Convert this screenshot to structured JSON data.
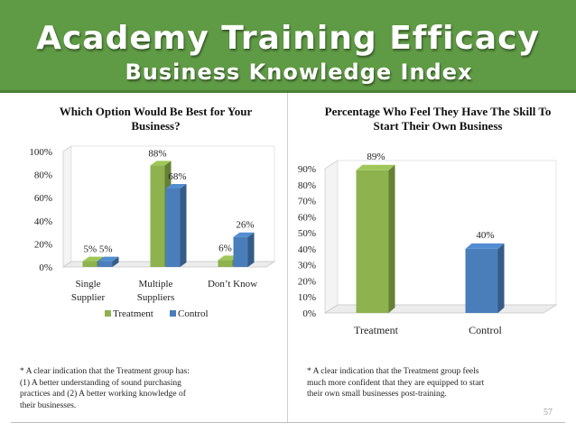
{
  "header": {
    "title": "Academy Training Efficacy",
    "subtitle": "Business Knowledge Index"
  },
  "colors": {
    "treatment": "#8db24e",
    "control": "#4a7ebb",
    "banner": "#5f9a45"
  },
  "chart_data": [
    {
      "type": "bar",
      "title": "Which Option Would Be Best for Your Business?",
      "categories": [
        "Single Supplier",
        "Multiple Suppliers",
        "Don't Know"
      ],
      "category_lines": [
        [
          "Single",
          "Supplier"
        ],
        [
          "Multiple",
          "Suppliers"
        ],
        [
          "Don’t Know"
        ]
      ],
      "series": [
        {
          "name": "Treatment",
          "values": [
            5,
            88,
            6
          ]
        },
        {
          "name": "Control",
          "values": [
            5,
            68,
            26
          ]
        }
      ],
      "data_labels": [
        [
          "5%",
          "88%",
          "6%"
        ],
        [
          "5%",
          "68%",
          "26%"
        ]
      ],
      "yticks": [
        "0%",
        "20%",
        "40%",
        "60%",
        "80%",
        "100%"
      ],
      "ylim": [
        0,
        100
      ],
      "legend": "bottom",
      "grid": false
    },
    {
      "type": "bar",
      "title": "Percentage Who Feel They Have The Skill To Start Their Own Business",
      "categories": [
        "Treatment",
        "Control"
      ],
      "values": [
        89,
        40
      ],
      "data_labels": [
        "89%",
        "40%"
      ],
      "yticks": [
        "0%",
        "10%",
        "20%",
        "30%",
        "40%",
        "50%",
        "60%",
        "70%",
        "80%",
        "90%"
      ],
      "ylim": [
        0,
        90
      ],
      "grid": false
    }
  ],
  "notes": {
    "left": [
      "* A clear indication that the Treatment group has:",
      "(1) A better understanding of sound purchasing",
      "practices and (2) A better working knowledge of",
      "their businesses."
    ],
    "right": [
      "* A clear indication that the Treatment group feels",
      "much more confident that they are equipped to start",
      "their own small businesses post-training."
    ]
  },
  "page_number": "57"
}
